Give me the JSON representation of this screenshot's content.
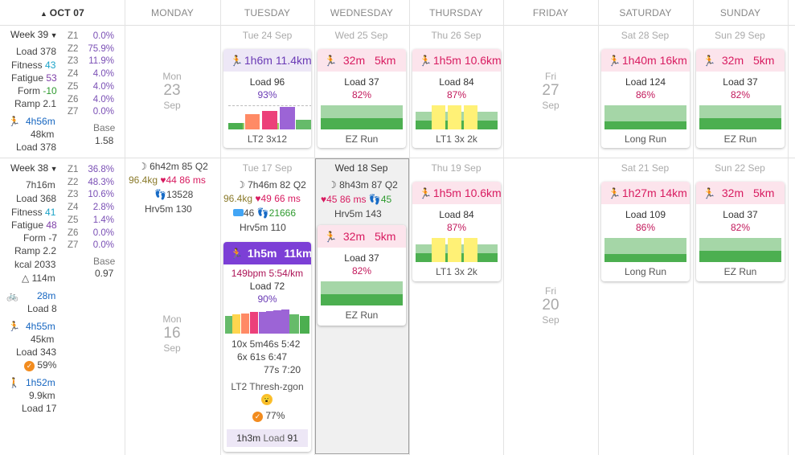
{
  "header": {
    "month": "OCT 07",
    "days": [
      "MONDAY",
      "TUESDAY",
      "WEDNESDAY",
      "THURSDAY",
      "FRIDAY",
      "SATURDAY",
      "SUNDAY"
    ]
  },
  "week39": {
    "label": "Week 39",
    "load": "Load 378",
    "fitness_label": "Fitness",
    "fitness": "43",
    "fatigue_label": "Fatigue",
    "fatigue": "53",
    "form_label": "Form",
    "form": "-10",
    "ramp": "Ramp 2.1",
    "run_time": "4h56m",
    "run_dist": "48km",
    "run_load": "Load 378",
    "zones": [
      {
        "z": "Z1",
        "v": "0.0%"
      },
      {
        "z": "Z2",
        "v": "75.9%"
      },
      {
        "z": "Z3",
        "v": "11.9%"
      },
      {
        "z": "Z4",
        "v": "4.0%"
      },
      {
        "z": "Z5",
        "v": "4.0%"
      },
      {
        "z": "Z6",
        "v": "4.0%"
      },
      {
        "z": "Z7",
        "v": "0.0%"
      }
    ],
    "base_label": "Base",
    "base": "1.58",
    "mon": {
      "d1": "Mon",
      "d2": "23",
      "d3": "Sep"
    },
    "fri": {
      "d1": "Fri",
      "d2": "27",
      "d3": "Sep"
    },
    "dates": {
      "tue": "Tue 24 Sep",
      "wed": "Wed 25 Sep",
      "thu": "Thu 26 Sep",
      "sat": "Sat 28 Sep",
      "sun": "Sun 29 Sep"
    },
    "cards": {
      "tue": {
        "time": "1h6m",
        "dist": "11.4km",
        "load": "Load 96",
        "pct": "93%",
        "name": "LT2 3x12"
      },
      "wed": {
        "time": "32m",
        "dist": "5km",
        "load": "Load 37",
        "pct": "82%",
        "name": "EZ Run"
      },
      "thu": {
        "time": "1h5m",
        "dist": "10.6km",
        "load": "Load 84",
        "pct": "87%",
        "name": "LT1 3x 2k"
      },
      "sat": {
        "time": "1h40m",
        "dist": "16km",
        "load": "Load 124",
        "pct": "86%",
        "name": "Long Run"
      },
      "sun": {
        "time": "32m",
        "dist": "5km",
        "load": "Load 37",
        "pct": "82%",
        "name": "EZ Run"
      }
    }
  },
  "week38": {
    "label": "Week 38",
    "time": "7h16m",
    "load": "Load 368",
    "fitness_label": "Fitness",
    "fitness": "41",
    "fatigue_label": "Fatigue",
    "fatigue": "48",
    "form": "Form -7",
    "ramp": "Ramp 2.2",
    "kcal": "kcal 2033",
    "elev": "△ 114m",
    "bike_time": "28m",
    "bike_load": "Load 8",
    "run_time": "4h55m",
    "run_dist": "45km",
    "run_load": "Load 343",
    "run_pct": "59%",
    "walk_time": "1h52m",
    "walk_dist": "9.9km",
    "walk_load": "Load 17",
    "zones": [
      {
        "z": "Z1",
        "v": "36.8%"
      },
      {
        "z": "Z2",
        "v": "48.3%"
      },
      {
        "z": "Z3",
        "v": "10.6%"
      },
      {
        "z": "Z4",
        "v": "2.8%"
      },
      {
        "z": "Z5",
        "v": "1.4%"
      },
      {
        "z": "Z6",
        "v": "0.0%"
      },
      {
        "z": "Z7",
        "v": "0.0%"
      }
    ],
    "base_label": "Base",
    "base": "0.97",
    "mon": {
      "d1": "Mon",
      "d2": "16",
      "d3": "Sep",
      "sleep": "6h42m 85 Q2",
      "weight": "96.4kg",
      "hr": "44",
      "hrv": "86 ms",
      "steps": "13528",
      "hrv5": "Hrv5m 130"
    },
    "tue": {
      "date": "Tue 17 Sep",
      "sleep": "7h46m 82 Q2",
      "weight": "96.4kg",
      "hr": "49",
      "hrv": "66 ms",
      "rest": "46",
      "steps": "21666",
      "hrv5": "Hrv5m 110",
      "card": {
        "time": "1h5m",
        "dist": "11km",
        "pace": "149bpm  5:54/km",
        "load": "Load 72",
        "pct": "90%",
        "intervals": [
          "10x  5m46s  5:42",
          "6x      61s  6:47",
          "77s  7:20"
        ],
        "name": "LT2 Thresh-zgon",
        "feel": "77%",
        "footer_time": "1h3m",
        "footer_load": "Load",
        "footer_val": "91"
      }
    },
    "wed": {
      "date": "Wed 18 Sep",
      "sleep": "8h43m 87 Q2",
      "hr": "45",
      "hrv": "86 ms",
      "steps": "45",
      "hrv5": "Hrv5m 143",
      "card": {
        "time": "32m",
        "dist": "5km",
        "load": "Load 37",
        "pct": "82%",
        "name": "EZ Run"
      }
    },
    "thu": {
      "date": "Thu 19 Sep",
      "card": {
        "time": "1h5m",
        "dist": "10.6km",
        "load": "Load 84",
        "pct": "87%",
        "name": "LT1 3x 2k"
      }
    },
    "fri": {
      "d1": "Fri",
      "d2": "20",
      "d3": "Sep"
    },
    "sat": {
      "date": "Sat 21 Sep",
      "card": {
        "time": "1h27m",
        "dist": "14km",
        "load": "Load 109",
        "pct": "86%",
        "name": "Long Run"
      }
    },
    "sun": {
      "date": "Sun 22 Sep",
      "card": {
        "time": "32m",
        "dist": "5km",
        "load": "Load 37",
        "pct": "82%",
        "name": "EZ Run"
      }
    }
  },
  "colors": {
    "accent": "#7c3fd6",
    "run": "#d81b60",
    "pink_bg": "#fce4ec",
    "green": "#4caf50",
    "yellow": "#fdd835"
  }
}
